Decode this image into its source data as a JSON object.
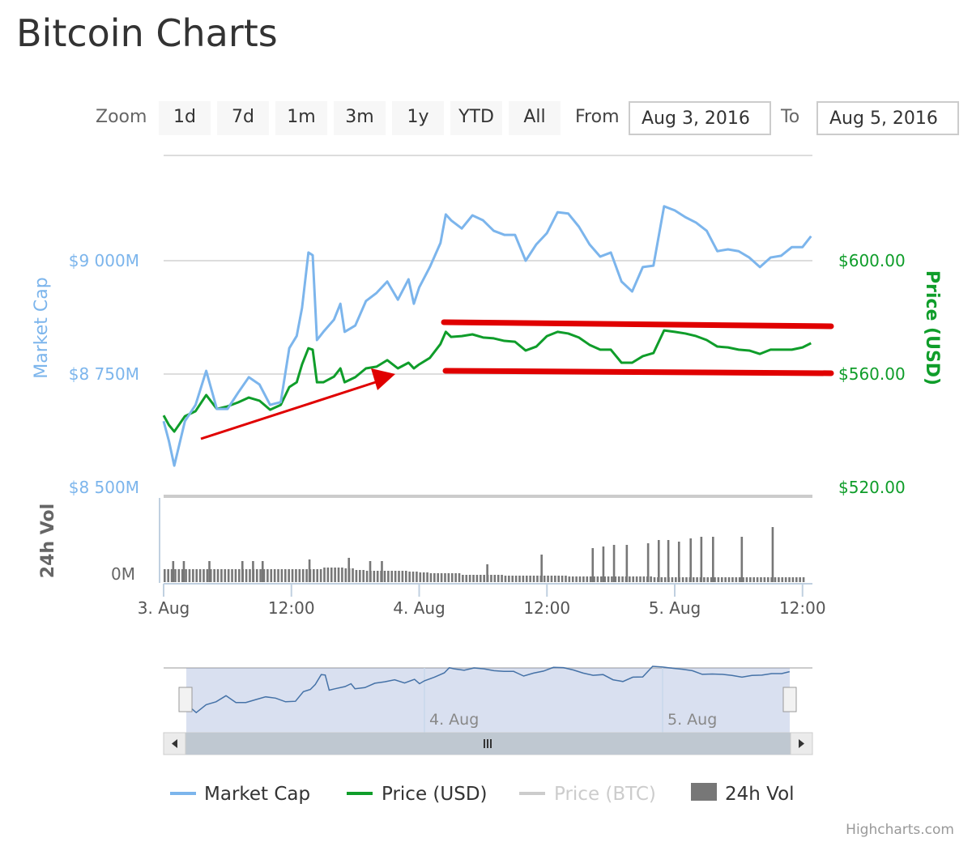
{
  "title": "Bitcoin Charts",
  "range_selector": {
    "zoom_label": "Zoom",
    "buttons": [
      "1d",
      "7d",
      "1m",
      "3m",
      "1y",
      "YTD",
      "All"
    ],
    "from_label": "From",
    "from_value": "Aug 3, 2016",
    "to_label": "To",
    "to_value": "Aug 5, 2016"
  },
  "credit": "Highcharts.com",
  "colors": {
    "market_cap": "#7cb5ec",
    "price": "#0f9d2a",
    "price_btc": "#cccccc",
    "volume": "#777777",
    "annotation": "#e00000"
  },
  "chart_data": {
    "type": "line",
    "x_unit": "hours since 3 Aug 00:00",
    "x_ticks": [
      {
        "h": 0,
        "label": "3. Aug"
      },
      {
        "h": 12,
        "label": "12:00"
      },
      {
        "h": 24,
        "label": "4. Aug"
      },
      {
        "h": 36,
        "label": "12:00"
      },
      {
        "h": 48,
        "label": "5. Aug"
      },
      {
        "h": 60,
        "label": "12:00"
      }
    ],
    "y_left": {
      "title": "Market Cap",
      "ticks": [
        {
          "v": 9000,
          "label": "$9 000M"
        },
        {
          "v": 8750,
          "label": "$8 750M"
        },
        {
          "v": 8500,
          "label": "$8 500M"
        }
      ]
    },
    "y_right": {
      "title": "Price (USD)",
      "ticks": [
        {
          "v": 600,
          "label": "$600.00"
        },
        {
          "v": 560,
          "label": "$560.00"
        },
        {
          "v": 520,
          "label": "$520.00"
        }
      ]
    },
    "y_volume": {
      "title": "24h Vol",
      "ticks": [
        {
          "v": 0,
          "label": "0M"
        }
      ]
    },
    "legend": [
      {
        "name": "Market Cap",
        "visible": true
      },
      {
        "name": "Price (USD)",
        "visible": true
      },
      {
        "name": "Price (BTC)",
        "visible": false
      },
      {
        "name": "24h Vol",
        "visible": true
      }
    ],
    "navigator_labels": [
      {
        "h": 24,
        "label": "4. Aug"
      },
      {
        "h": 48,
        "label": "5. Aug"
      }
    ],
    "series": [
      {
        "name": "Market Cap",
        "unit": "M USD",
        "points": [
          [
            0,
            8646
          ],
          [
            0.5,
            8602
          ],
          [
            1,
            8548
          ],
          [
            2,
            8646
          ],
          [
            3,
            8682
          ],
          [
            4,
            8757
          ],
          [
            5,
            8673
          ],
          [
            6,
            8673
          ],
          [
            7,
            8709
          ],
          [
            8,
            8743
          ],
          [
            9,
            8727
          ],
          [
            10,
            8682
          ],
          [
            11,
            8688
          ],
          [
            11.8,
            8807
          ],
          [
            12.5,
            8834
          ],
          [
            13,
            8896
          ],
          [
            13.6,
            9018
          ],
          [
            14,
            9012
          ],
          [
            14.4,
            8825
          ],
          [
            15,
            8843
          ],
          [
            16,
            8870
          ],
          [
            16.6,
            8905
          ],
          [
            17,
            8843
          ],
          [
            18,
            8857
          ],
          [
            19,
            8911
          ],
          [
            20,
            8929
          ],
          [
            21,
            8954
          ],
          [
            22,
            8914
          ],
          [
            23,
            8959
          ],
          [
            23.5,
            8905
          ],
          [
            24,
            8941
          ],
          [
            25,
            8986
          ],
          [
            26,
            9039
          ],
          [
            26.5,
            9102
          ],
          [
            27,
            9089
          ],
          [
            28,
            9071
          ],
          [
            29,
            9100
          ],
          [
            30,
            9089
          ],
          [
            31,
            9066
          ],
          [
            32,
            9057
          ],
          [
            33,
            9057
          ],
          [
            34,
            9000
          ],
          [
            35,
            9036
          ],
          [
            36,
            9061
          ],
          [
            37,
            9107
          ],
          [
            38,
            9104
          ],
          [
            39,
            9075
          ],
          [
            40,
            9036
          ],
          [
            41,
            9009
          ],
          [
            42,
            9018
          ],
          [
            43,
            8954
          ],
          [
            44,
            8932
          ],
          [
            45,
            8986
          ],
          [
            46,
            8989
          ],
          [
            47,
            9120
          ],
          [
            48,
            9111
          ],
          [
            49,
            9096
          ],
          [
            50,
            9084
          ],
          [
            51,
            9066
          ],
          [
            52,
            9021
          ],
          [
            53,
            9025
          ],
          [
            54,
            9021
          ],
          [
            55,
            9007
          ],
          [
            56,
            8986
          ],
          [
            57,
            9007
          ],
          [
            58,
            9011
          ],
          [
            59,
            9030
          ],
          [
            60,
            9030
          ],
          [
            60.8,
            9054
          ]
        ]
      },
      {
        "name": "Price (USD)",
        "unit": "USD",
        "points": [
          [
            0,
            545.4
          ],
          [
            0.5,
            542.0
          ],
          [
            1,
            539.7
          ],
          [
            2,
            545.1
          ],
          [
            3,
            546.9
          ],
          [
            4,
            552.6
          ],
          [
            5,
            547.7
          ],
          [
            6,
            548.6
          ],
          [
            7,
            550.0
          ],
          [
            8,
            551.7
          ],
          [
            9,
            550.6
          ],
          [
            10,
            547.4
          ],
          [
            11,
            549.1
          ],
          [
            11.8,
            555.4
          ],
          [
            12.5,
            557.1
          ],
          [
            13,
            563.4
          ],
          [
            13.6,
            569.1
          ],
          [
            14,
            568.6
          ],
          [
            14.4,
            557.1
          ],
          [
            15,
            557.1
          ],
          [
            16,
            559.1
          ],
          [
            16.6,
            562.0
          ],
          [
            17,
            557.1
          ],
          [
            18,
            558.9
          ],
          [
            19,
            562.0
          ],
          [
            20,
            562.6
          ],
          [
            21,
            564.9
          ],
          [
            22,
            562.0
          ],
          [
            23,
            564.0
          ],
          [
            23.5,
            562.0
          ],
          [
            24,
            563.4
          ],
          [
            25,
            565.7
          ],
          [
            26,
            570.6
          ],
          [
            26.5,
            574.9
          ],
          [
            27,
            573.1
          ],
          [
            28,
            573.4
          ],
          [
            29,
            574.0
          ],
          [
            30,
            572.9
          ],
          [
            31,
            572.6
          ],
          [
            32,
            571.7
          ],
          [
            33,
            571.4
          ],
          [
            34,
            568.3
          ],
          [
            35,
            569.7
          ],
          [
            36,
            573.4
          ],
          [
            37,
            574.9
          ],
          [
            38,
            574.3
          ],
          [
            39,
            572.9
          ],
          [
            40,
            570.3
          ],
          [
            41,
            568.6
          ],
          [
            42,
            568.6
          ],
          [
            43,
            564.0
          ],
          [
            44,
            564.0
          ],
          [
            45,
            566.3
          ],
          [
            46,
            567.4
          ],
          [
            47,
            575.4
          ],
          [
            48,
            574.9
          ],
          [
            49,
            574.3
          ],
          [
            50,
            573.4
          ],
          [
            51,
            572.0
          ],
          [
            52,
            569.7
          ],
          [
            53,
            569.4
          ],
          [
            54,
            568.6
          ],
          [
            55,
            568.3
          ],
          [
            56,
            567.1
          ],
          [
            57,
            568.6
          ],
          [
            58,
            568.6
          ],
          [
            59,
            568.6
          ],
          [
            60,
            569.4
          ],
          [
            60.8,
            570.9
          ]
        ]
      },
      {
        "name": "24h Vol",
        "unit": "relative",
        "base": [
          16,
          16,
          16,
          16,
          16,
          16,
          16,
          16,
          16,
          16,
          16,
          16,
          16,
          16,
          16,
          18,
          18,
          17,
          15,
          14,
          14,
          14,
          14,
          13,
          12,
          11,
          11,
          11,
          9,
          9,
          9,
          9,
          8,
          8,
          8,
          8,
          8,
          8,
          7,
          7,
          7,
          7,
          7,
          7,
          7,
          7,
          6,
          6,
          6,
          6,
          6,
          6,
          6,
          6,
          6,
          6,
          6,
          6,
          6,
          6,
          6
        ],
        "spikes": [
          [
            0.8,
            26
          ],
          [
            1.8,
            26
          ],
          [
            4.2,
            26
          ],
          [
            7.3,
            26
          ],
          [
            8.3,
            26
          ],
          [
            9.2,
            26
          ],
          [
            13.6,
            28
          ],
          [
            17.3,
            30
          ],
          [
            19.3,
            26
          ],
          [
            20.4,
            26
          ],
          [
            30.3,
            22
          ],
          [
            35.4,
            34
          ],
          [
            40.2,
            42
          ],
          [
            41.2,
            44
          ],
          [
            42.2,
            46
          ],
          [
            43.4,
            46
          ],
          [
            45.4,
            48
          ],
          [
            46.4,
            52
          ],
          [
            47.3,
            52
          ],
          [
            48.3,
            50
          ],
          [
            49.4,
            54
          ],
          [
            50.4,
            56
          ],
          [
            51.5,
            56
          ],
          [
            54.2,
            56
          ],
          [
            57.1,
            68
          ]
        ]
      }
    ]
  }
}
